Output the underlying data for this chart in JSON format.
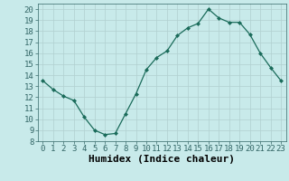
{
  "x": [
    0,
    1,
    2,
    3,
    4,
    5,
    6,
    7,
    8,
    9,
    10,
    11,
    12,
    13,
    14,
    15,
    16,
    17,
    18,
    19,
    20,
    21,
    22,
    23
  ],
  "y": [
    13.5,
    12.7,
    12.1,
    11.7,
    10.2,
    9.0,
    8.6,
    8.7,
    10.5,
    12.3,
    14.5,
    15.6,
    16.2,
    17.6,
    18.3,
    18.7,
    20.0,
    19.2,
    18.8,
    18.8,
    17.7,
    16.0,
    14.7,
    13.5
  ],
  "line_color": "#1a6b5a",
  "marker": "D",
  "marker_size": 2.0,
  "background_color": "#c8eaea",
  "grid_color": "#b0d0d0",
  "xlabel": "Humidex (Indice chaleur)",
  "ylabel": "",
  "xlim": [
    -0.5,
    23.5
  ],
  "ylim": [
    8,
    20.5
  ],
  "xticks": [
    0,
    1,
    2,
    3,
    4,
    5,
    6,
    7,
    8,
    9,
    10,
    11,
    12,
    13,
    14,
    15,
    16,
    17,
    18,
    19,
    20,
    21,
    22,
    23
  ],
  "yticks": [
    8,
    9,
    10,
    11,
    12,
    13,
    14,
    15,
    16,
    17,
    18,
    19,
    20
  ],
  "xlabel_fontsize": 8,
  "tick_fontsize": 6.5
}
